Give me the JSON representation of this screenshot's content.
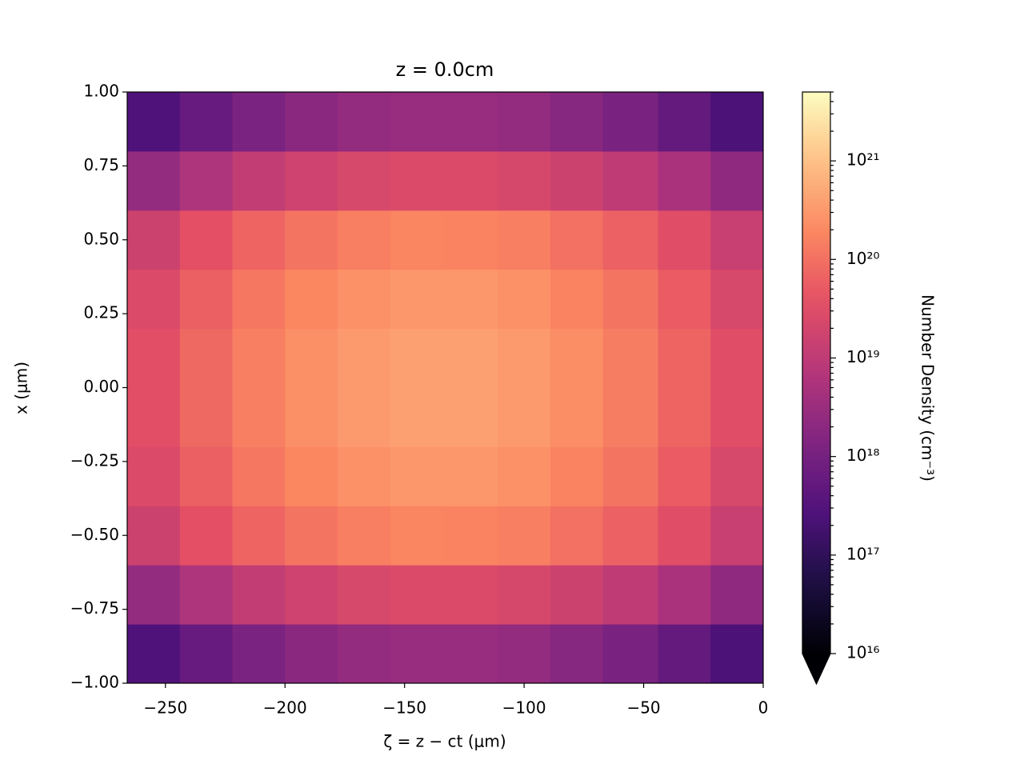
{
  "chart_data": {
    "type": "heatmap",
    "title": "z = 0.0cm",
    "xlabel": "ζ = z − ct (μm)",
    "ylabel": "x (μm)",
    "colormap": "magma",
    "x_edges": [
      -266,
      -244,
      -222,
      -200,
      -178,
      -156,
      -134,
      -111,
      -89,
      -67,
      -44,
      -22,
      0
    ],
    "y_edges": [
      -1,
      -0.8,
      -0.6,
      -0.4,
      -0.2,
      0,
      0.2,
      0.4,
      0.6,
      0.8,
      1
    ],
    "z": [
      [
        2.7e+17,
        6.1e+17,
        1.2e+18,
        1.9e+18,
        2.5e+18,
        2.9e+18,
        2.9e+18,
        2.5e+18,
        1.7e+18,
        1.1e+18,
        5.4e+17,
        2.4e+17
      ],
      [
        2.5e+18,
        5.7e+18,
        1.1e+19,
        1.7e+19,
        2.4e+19,
        2.7e+19,
        2.7e+19,
        2.3e+19,
        1.6e+19,
        9.7e+18,
        5e+18,
        2.2e+18
      ],
      [
        1.6e+19,
        3.7e+19,
        6.9e+19,
        1.1e+20,
        1.5e+20,
        1.8e+20,
        1.7e+20,
        1.5e+20,
        1e+20,
        6.3e+19,
        3.2e+19,
        1.4e+19
      ],
      [
        2.7e+19,
        6.1e+19,
        1.2e+20,
        1.9e+20,
        2.5e+20,
        2.9e+20,
        2.9e+20,
        2.5e+20,
        1.7e+20,
        1.1e+20,
        5.4e+19,
        2.4e+19
      ],
      [
        3.5e+19,
        8e+19,
        1.5e+20,
        2.4e+20,
        3.3e+20,
        3.8e+20,
        3.8e+20,
        3.2e+20,
        2.3e+20,
        1.4e+20,
        7e+19,
        3.1e+19
      ],
      [
        3.5e+19,
        8e+19,
        1.5e+20,
        2.4e+20,
        3.3e+20,
        3.8e+20,
        3.8e+20,
        3.2e+20,
        2.3e+20,
        1.4e+20,
        7e+19,
        3.1e+19
      ],
      [
        2.7e+19,
        6.1e+19,
        1.2e+20,
        1.9e+20,
        2.5e+20,
        2.9e+20,
        2.9e+20,
        2.5e+20,
        1.7e+20,
        1.1e+20,
        5.4e+19,
        2.4e+19
      ],
      [
        1.6e+19,
        3.7e+19,
        6.9e+19,
        1.1e+20,
        1.5e+20,
        1.8e+20,
        1.7e+20,
        1.5e+20,
        1e+20,
        6.3e+19,
        3.2e+19,
        1.4e+19
      ],
      [
        2.5e+18,
        5.7e+18,
        1.1e+19,
        1.7e+19,
        2.4e+19,
        2.7e+19,
        2.7e+19,
        2.3e+19,
        1.6e+19,
        9.7e+18,
        5e+18,
        2.2e+18
      ],
      [
        2.7e+17,
        6.1e+17,
        1.2e+18,
        1.9e+18,
        2.5e+18,
        2.9e+18,
        2.9e+18,
        2.5e+18,
        1.7e+18,
        1.1e+18,
        5.4e+17,
        2.4e+17
      ]
    ],
    "xlim": [
      -266,
      0
    ],
    "ylim": [
      -1,
      1
    ],
    "xticks": [
      {
        "value": -250,
        "label": "−250"
      },
      {
        "value": -200,
        "label": "−200"
      },
      {
        "value": -150,
        "label": "−150"
      },
      {
        "value": -100,
        "label": "−100"
      },
      {
        "value": -50,
        "label": "−50"
      },
      0
    ],
    "yticks": [
      {
        "value": -1,
        "label": "−1.00"
      },
      {
        "value": -0.75,
        "label": "−0.75"
      },
      {
        "value": -0.5,
        "label": "−0.50"
      },
      {
        "value": -0.25,
        "label": "−0.25"
      },
      {
        "value": 0,
        "label": "0.00"
      },
      {
        "value": 0.25,
        "label": "0.25"
      },
      {
        "value": 0.5,
        "label": "0.50"
      },
      {
        "value": 0.75,
        "label": "0.75"
      },
      {
        "value": 1,
        "label": "1.00"
      }
    ],
    "colorbar": {
      "label": "Number Density (cm⁻³)",
      "scale": "log",
      "clim": [
        1e+16,
        5e+21
      ],
      "extend": "min",
      "ticks": [
        {
          "value": 1e+16,
          "label": "10¹⁶"
        },
        {
          "value": 1e+17,
          "label": "10¹⁷"
        },
        {
          "value": 1e+18,
          "label": "10¹⁸"
        },
        {
          "value": 1e+19,
          "label": "10¹⁹"
        },
        {
          "value": 1e+20,
          "label": "10²⁰"
        },
        {
          "value": 1e+21,
          "label": "10²¹"
        }
      ]
    }
  }
}
